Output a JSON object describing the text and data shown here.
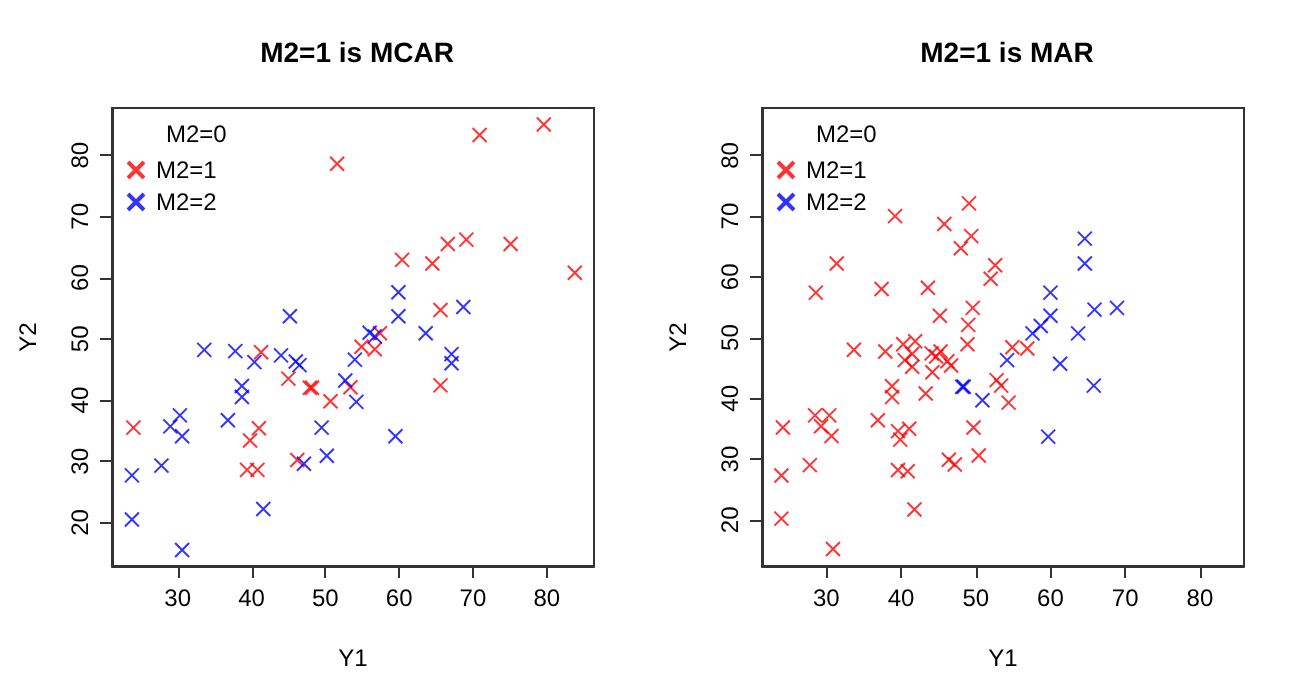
{
  "chart_data": [
    {
      "type": "scatter",
      "title": "M2=1 is MCAR",
      "xlabel": "Y1",
      "ylabel": "Y2",
      "legend_title": "M2=0",
      "legend": "top left",
      "marker": "cross",
      "xlim": [
        21.1,
        86.4
      ],
      "ylim": [
        12.9,
        87.7
      ],
      "xticks": [
        30,
        40,
        50,
        60,
        70,
        80
      ],
      "yticks": [
        20,
        30,
        40,
        50,
        60,
        70,
        80
      ],
      "series": [
        {
          "name": "M2=1",
          "color": "#ff0000",
          "x": [
            24.0,
            51.6,
            70.9,
            79.6,
            60.4,
            66.6,
            69.1,
            75.1,
            83.8,
            64.5,
            65.6,
            41.3,
            45.0,
            47.9,
            48.2,
            50.7,
            53.4,
            54.9,
            56.7,
            57.4,
            65.6,
            39.8,
            41.0,
            39.4,
            40.8,
            46.2
          ],
          "values": [
            35.5,
            78.6,
            83.3,
            85.0,
            62.9,
            65.5,
            66.2,
            65.5,
            60.8,
            62.3,
            54.7,
            47.8,
            43.5,
            42.0,
            42.0,
            39.8,
            42.1,
            48.7,
            48.3,
            50.9,
            42.4,
            33.4,
            35.4,
            28.6,
            28.6,
            30.2
          ]
        },
        {
          "name": "M2=2",
          "color": "#0000ff",
          "x": [
            23.8,
            23.8,
            30.6,
            27.8,
            29.0,
            30.3,
            30.6,
            33.6,
            36.8,
            37.8,
            38.7,
            38.7,
            40.4,
            44.0,
            45.2,
            46.0,
            46.5,
            41.6,
            47.1,
            49.5,
            50.2,
            52.7,
            54.0,
            54.2,
            56.0,
            56.7,
            59.9,
            59.9,
            59.5,
            63.6,
            68.7,
            67.1,
            67.1
          ],
          "values": [
            27.7,
            20.5,
            15.5,
            29.3,
            35.7,
            37.5,
            34.1,
            48.2,
            36.7,
            48.0,
            42.3,
            40.5,
            46.2,
            47.3,
            53.7,
            46.3,
            45.7,
            22.2,
            29.6,
            35.5,
            30.9,
            43.2,
            46.6,
            39.7,
            51.0,
            50.4,
            57.6,
            53.7,
            34.1,
            50.9,
            55.2,
            47.5,
            46.0
          ]
        }
      ]
    },
    {
      "type": "scatter",
      "title": "M2=1 is MAR",
      "xlabel": "Y1",
      "ylabel": "Y2",
      "legend_title": "M2=0",
      "legend": "top left",
      "marker": "cross",
      "xlim": [
        21.4,
        85.9
      ],
      "ylim": [
        12.4,
        87.8
      ],
      "xticks": [
        30,
        40,
        50,
        60,
        70,
        80
      ],
      "yticks": [
        20,
        30,
        40,
        50,
        60,
        70,
        80
      ],
      "series": [
        {
          "name": "M2=1",
          "color": "#ff0000",
          "x": [
            24.2,
            24.0,
            24.0,
            27.8,
            28.5,
            29.3,
            30.4,
            30.7,
            30.9,
            28.6,
            31.4,
            33.7,
            36.9,
            37.4,
            37.9,
            39.2,
            38.8,
            38.8,
            39.6,
            39.9,
            41.1,
            39.6,
            40.9,
            40.3,
            40.5,
            41.5,
            41.5,
            41.9,
            41.8,
            43.6,
            43.3,
            44.1,
            44.7,
            44.2,
            45.3,
            45.2,
            45.8,
            46.2,
            46.7,
            46.4,
            47.2,
            48.0,
            49.1,
            49.4,
            49.6,
            49.0,
            48.9,
            49.7,
            50.4,
            52.0,
            52.6,
            52.8,
            53.4,
            54.4,
            54.9,
            56.9
          ],
          "values": [
            35.2,
            27.3,
            20.2,
            29.0,
            37.2,
            35.4,
            37.2,
            33.8,
            15.2,
            57.4,
            62.2,
            48.0,
            36.4,
            58.0,
            47.7,
            70.0,
            42.0,
            40.2,
            34.6,
            33.2,
            35.0,
            28.2,
            28.0,
            48.9,
            46.3,
            45.2,
            47.3,
            49.4,
            21.7,
            58.2,
            40.8,
            47.4,
            46.9,
            44.3,
            47.7,
            53.6,
            68.7,
            46.1,
            45.4,
            29.9,
            29.1,
            64.7,
            72.1,
            66.7,
            54.9,
            52.1,
            48.9,
            35.2,
            30.6,
            59.7,
            61.9,
            43.0,
            42.1,
            39.3,
            48.4,
            48.2
          ]
        },
        {
          "name": "M2=2",
          "color": "#0000ff",
          "x": [
            64.6,
            64.6,
            60.0,
            60.0,
            57.6,
            58.7,
            63.7,
            68.9,
            65.9,
            61.3,
            65.8,
            59.7,
            54.2,
            48.2,
            48.4,
            50.9
          ],
          "values": [
            66.3,
            62.2,
            57.4,
            53.6,
            50.7,
            51.9,
            50.7,
            54.9,
            54.6,
            45.7,
            42.1,
            33.7,
            46.3,
            41.9,
            41.9,
            39.7
          ]
        }
      ]
    }
  ]
}
